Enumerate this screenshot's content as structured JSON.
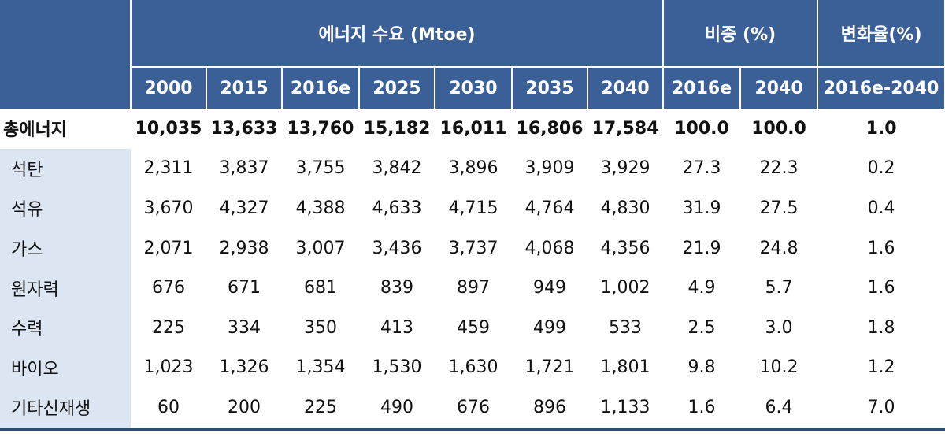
{
  "header": {
    "groups": [
      "에너지 수요 (Mtoe)",
      "비중 (%)",
      "변화율(%)"
    ],
    "years": [
      "2000",
      "2015",
      "2016e",
      "2025",
      "2030",
      "2035",
      "2040"
    ],
    "share_years": [
      "2016e",
      "2040"
    ],
    "rate_period": "2016e-2040"
  },
  "rows": [
    {
      "label": "총에너지",
      "values": [
        "10,035",
        "13,633",
        "13,760",
        "15,182",
        "16,011",
        "16,806",
        "17,584",
        "100.0",
        "100.0",
        "1.0"
      ]
    },
    {
      "label": "석탄",
      "values": [
        "2,311",
        "3,837",
        "3,755",
        "3,842",
        "3,896",
        "3,909",
        "3,929",
        "27.3",
        "22.3",
        "0.2"
      ]
    },
    {
      "label": "석유",
      "values": [
        "3,670",
        "4,327",
        "4,388",
        "4,633",
        "4,715",
        "4,764",
        "4,830",
        "31.9",
        "27.5",
        "0.4"
      ]
    },
    {
      "label": "가스",
      "values": [
        "2,071",
        "2,938",
        "3,007",
        "3,436",
        "3,737",
        "4,068",
        "4,356",
        "21.9",
        "24.8",
        "1.6"
      ]
    },
    {
      "label": "원자력",
      "values": [
        "676",
        "671",
        "681",
        "839",
        "897",
        "949",
        "1,002",
        "4.9",
        "5.7",
        "1.6"
      ]
    },
    {
      "label": "수력",
      "values": [
        "225",
        "334",
        "350",
        "413",
        "459",
        "499",
        "533",
        "2.5",
        "3.0",
        "1.8"
      ]
    },
    {
      "label": "바이오",
      "values": [
        "1,023",
        "1,326",
        "1,354",
        "1,530",
        "1,630",
        "1,721",
        "1,801",
        "9.8",
        "10.2",
        "1.2"
      ]
    },
    {
      "label": "기타신재생",
      "values": [
        "60",
        "200",
        "225",
        "490",
        "676",
        "896",
        "1,133",
        "1.6",
        "6.4",
        "7.0"
      ]
    }
  ]
}
